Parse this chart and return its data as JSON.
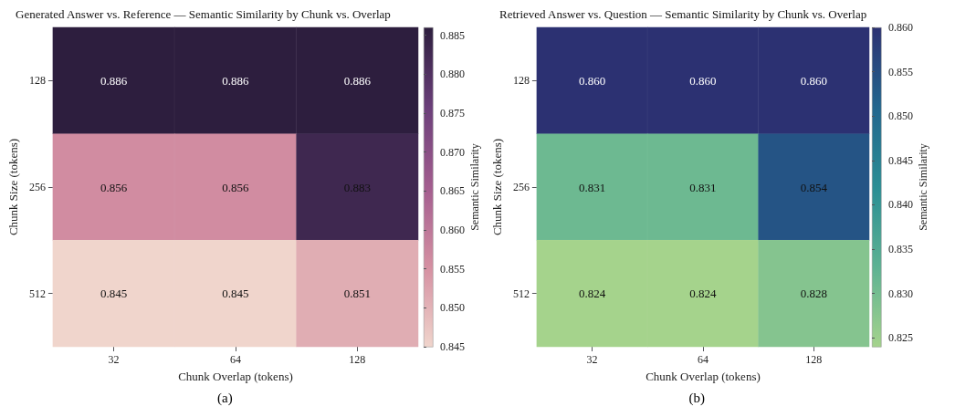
{
  "chart_data": [
    {
      "type": "heatmap",
      "title": "Generated Answer vs. Reference — Semantic Similarity by Chunk vs. Overlap",
      "xlabel": "Chunk Overlap (tokens)",
      "ylabel": "Chunk Size (tokens)",
      "clabel": "Semantic Similarity",
      "categories": [
        "32",
        "64",
        "128"
      ],
      "y_categories": [
        "128",
        "256",
        "512"
      ],
      "cells": [
        [
          0.886,
          0.886,
          0.886
        ],
        [
          0.856,
          0.856,
          0.883
        ],
        [
          0.845,
          0.845,
          0.851
        ]
      ],
      "cell_labels": [
        [
          "0.886",
          "0.886",
          "0.886"
        ],
        [
          "0.856",
          "0.856",
          "0.883"
        ],
        [
          "0.845",
          "0.845",
          "0.851"
        ]
      ],
      "clim": [
        0.845,
        0.886
      ],
      "cticks": [
        0.845,
        {
          "value": 0.85,
          "label": "0.850"
        },
        0.855,
        {
          "value": 0.86,
          "label": "0.860"
        },
        0.865,
        {
          "value": 0.87,
          "label": "0.870"
        },
        0.875,
        {
          "value": 0.88,
          "label": "0.880"
        },
        0.885
      ],
      "annotations": [
        "(a)"
      ]
    },
    {
      "type": "heatmap",
      "title": "Retrieved Answer vs. Question — Semantic Similarity by Chunk vs. Overlap",
      "xlabel": "Chunk Overlap (tokens)",
      "ylabel": "Chunk Size (tokens)",
      "clabel": "Semantic Similarity",
      "categories": [
        "32",
        "64",
        "128"
      ],
      "y_categories": [
        "128",
        "256",
        "512"
      ],
      "cells": [
        [
          0.86,
          0.86,
          0.86
        ],
        [
          0.831,
          0.831,
          0.854
        ],
        [
          0.824,
          0.824,
          0.828
        ]
      ],
      "cell_labels": [
        [
          "0.860",
          "0.860",
          "0.860"
        ],
        [
          "0.831",
          "0.831",
          "0.854"
        ],
        [
          "0.824",
          "0.824",
          "0.828"
        ]
      ],
      "clim": [
        0.824,
        0.86
      ],
      "cticks": [
        0.825,
        {
          "value": 0.83,
          "label": "0.830"
        },
        0.835,
        {
          "value": 0.84,
          "label": "0.840"
        },
        0.845,
        {
          "value": 0.85,
          "label": "0.850"
        },
        0.855,
        {
          "value": 0.86,
          "label": "0.860"
        }
      ],
      "annotations": [
        "(b)"
      ]
    }
  ]
}
